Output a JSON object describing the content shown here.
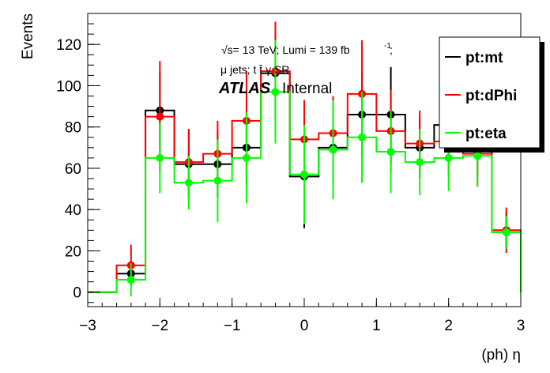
{
  "chart_data": {
    "type": "line",
    "xlabel": "(ph) η",
    "ylabel": "Events",
    "xlim": [
      -3,
      3
    ],
    "ylim": [
      -7,
      135
    ],
    "x_ticks": [
      -3,
      -2,
      -1,
      0,
      1,
      2,
      3
    ],
    "y_ticks": [
      0,
      20,
      40,
      60,
      80,
      100,
      120
    ],
    "x_tick_labels": [
      "−3",
      "−2",
      "−1",
      "0",
      "1",
      "2",
      "3"
    ],
    "y_tick_labels": [
      "0",
      "20",
      "40",
      "60",
      "80",
      "100",
      "120"
    ],
    "bin_edges": [
      -3,
      -2.6,
      -2.2,
      -1.8,
      -1.4,
      -1.0,
      -0.6,
      -0.2,
      0.2,
      0.6,
      1.0,
      1.4,
      1.8,
      2.2,
      2.6,
      3.0
    ],
    "annotations": {
      "energy_lumi": "√s= 13 TeV; Lumi = 139 fb",
      "lumi_sup": "-1",
      "lumi_end": ";",
      "region": "μ jets; t t̄ γ SR",
      "atlas": "ATLAS",
      "internal": "Internal"
    },
    "legend_position": "top-right",
    "series": [
      {
        "name": "pt:mt",
        "color": "#000000",
        "values": [
          0,
          9,
          88,
          62,
          62,
          70,
          106,
          56,
          70,
          86,
          86,
          70,
          81,
          70,
          30,
          0
        ],
        "errors": [
          0,
          3,
          19,
          17,
          16,
          17,
          20,
          25,
          18,
          21,
          23,
          15,
          15,
          14,
          9,
          0
        ]
      },
      {
        "name": "pt:dPhi",
        "color": "#ff0000",
        "values": [
          0,
          13,
          85,
          63,
          67,
          83,
          107,
          74,
          77,
          96,
          78,
          72,
          73,
          67,
          30,
          0
        ],
        "errors": [
          0,
          10,
          27,
          16,
          16,
          24,
          24,
          19,
          18,
          26,
          20,
          16,
          16,
          16,
          11,
          0
        ]
      },
      {
        "name": "pt:eta",
        "color": "#00ff00",
        "values": [
          0,
          6,
          65,
          53,
          54,
          65,
          97,
          57,
          69,
          75,
          68,
          63,
          65,
          66,
          29,
          0
        ],
        "errors": [
          0,
          8,
          17,
          13,
          20,
          22,
          25,
          24,
          24,
          22,
          20,
          16,
          16,
          15,
          8,
          0
        ]
      }
    ]
  }
}
